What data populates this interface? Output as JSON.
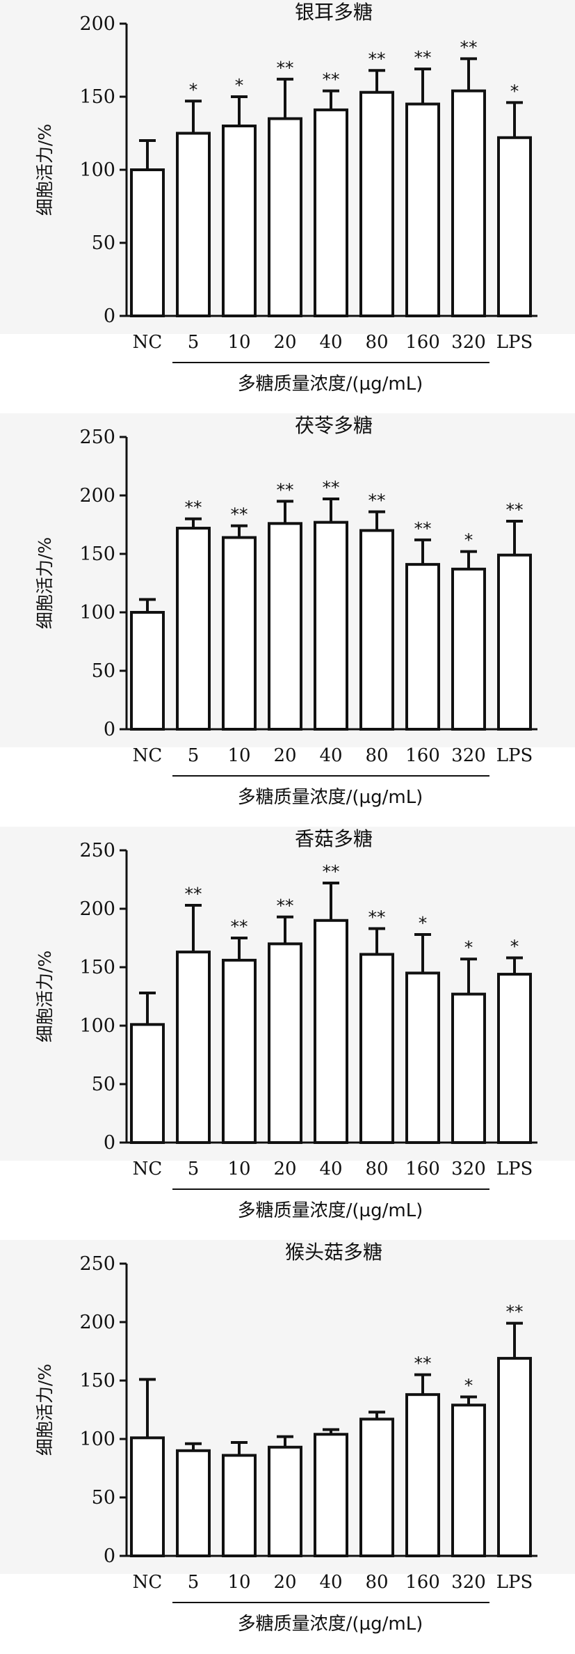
{
  "chart_data": [
    {
      "type": "bar",
      "title": "银耳多糖",
      "ylabel": "细胞活力/%",
      "xlabel": "多糖质量浓度/(µg/mL)",
      "ylim": [
        0,
        200
      ],
      "yticks": [
        0,
        50,
        100,
        150,
        200
      ],
      "grid": false,
      "categories": [
        "NC",
        "5",
        "10",
        "20",
        "40",
        "80",
        "160",
        "320",
        "LPS"
      ],
      "values": [
        100,
        125,
        130,
        135,
        141,
        153,
        145,
        154,
        122
      ],
      "errors": [
        20,
        22,
        20,
        27,
        13,
        15,
        24,
        22,
        24
      ],
      "significance": [
        "",
        "*",
        "*",
        "**",
        "**",
        "**",
        "**",
        "**",
        "*"
      ]
    },
    {
      "type": "bar",
      "title": "茯苓多糖",
      "ylabel": "细胞活力/%",
      "xlabel": "多糖质量浓度/(µg/mL)",
      "ylim": [
        0,
        250
      ],
      "yticks": [
        0,
        50,
        100,
        150,
        200,
        250
      ],
      "grid": false,
      "categories": [
        "NC",
        "5",
        "10",
        "20",
        "40",
        "80",
        "160",
        "320",
        "LPS"
      ],
      "values": [
        100,
        172,
        164,
        176,
        177,
        170,
        141,
        137,
        149
      ],
      "errors": [
        11,
        8,
        10,
        19,
        20,
        16,
        21,
        15,
        29
      ],
      "significance": [
        "",
        "**",
        "**",
        "**",
        "**",
        "**",
        "**",
        "*",
        "**"
      ]
    },
    {
      "type": "bar",
      "title": "香菇多糖",
      "ylabel": "细胞活力/%",
      "xlabel": "多糖质量浓度/(µg/mL)",
      "ylim": [
        0,
        250
      ],
      "yticks": [
        0,
        50,
        100,
        150,
        200,
        250
      ],
      "grid": false,
      "categories": [
        "NC",
        "5",
        "10",
        "20",
        "40",
        "80",
        "160",
        "320",
        "LPS"
      ],
      "values": [
        101,
        163,
        156,
        170,
        190,
        161,
        145,
        127,
        144
      ],
      "errors": [
        27,
        40,
        19,
        23,
        32,
        22,
        33,
        30,
        14
      ],
      "significance": [
        "",
        "**",
        "**",
        "**",
        "**",
        "**",
        "*",
        "*",
        "*"
      ]
    },
    {
      "type": "bar",
      "title": "猴头菇多糖",
      "ylabel": "细胞活力/%",
      "xlabel": "多糖质量浓度/(µg/mL)",
      "ylim": [
        0,
        250
      ],
      "yticks": [
        0,
        50,
        100,
        150,
        200,
        250
      ],
      "grid": false,
      "categories": [
        "NC",
        "5",
        "10",
        "20",
        "40",
        "80",
        "160",
        "320",
        "LPS"
      ],
      "values": [
        101,
        90,
        86,
        93,
        104,
        117,
        138,
        129,
        169
      ],
      "errors": [
        50,
        6,
        11,
        9,
        4,
        6,
        17,
        7,
        30
      ],
      "significance": [
        "",
        "",
        "",
        "",
        "",
        "",
        "**",
        "*",
        "**"
      ]
    }
  ]
}
